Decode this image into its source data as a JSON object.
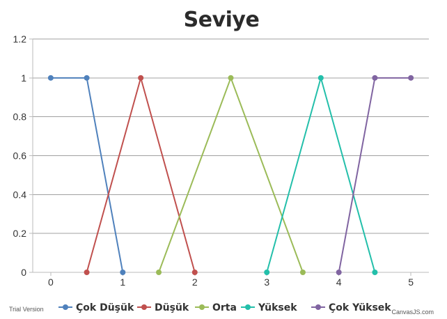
{
  "trial_label": "Trial Version",
  "credit_label": "CanvasJS.com",
  "chart_data": {
    "type": "line",
    "title": "Seviye",
    "xlabel": "",
    "ylabel": "",
    "xlim": [
      -0.25,
      5.25
    ],
    "ylim": [
      0,
      1.2
    ],
    "x_ticks": [
      0,
      1,
      2,
      3,
      4,
      5
    ],
    "y_ticks": [
      0,
      0.2,
      0.4,
      0.6,
      0.8,
      1,
      1.2
    ],
    "x_tick_labels": [
      "0",
      "1",
      "2",
      "3",
      "4",
      "5"
    ],
    "y_tick_labels": [
      "0",
      "0.2",
      "0.4",
      "0.6",
      "0.8",
      "1",
      "1.2"
    ],
    "grid": "horizontal",
    "legend_position": "bottom",
    "series": [
      {
        "name": "Çok Düşük",
        "color": "#4f81bc",
        "points": [
          [
            0,
            1
          ],
          [
            0.5,
            1
          ],
          [
            1,
            0
          ]
        ]
      },
      {
        "name": "Düşük",
        "color": "#c0504e",
        "points": [
          [
            0.5,
            0
          ],
          [
            1.25,
            1
          ],
          [
            2,
            0
          ]
        ]
      },
      {
        "name": "Orta",
        "color": "#9bbb58",
        "points": [
          [
            1.5,
            0
          ],
          [
            2.5,
            1
          ],
          [
            3.5,
            0
          ]
        ]
      },
      {
        "name": "Yüksek",
        "color": "#23bfaa",
        "points": [
          [
            3,
            0
          ],
          [
            3.75,
            1
          ],
          [
            4.5,
            0
          ]
        ]
      },
      {
        "name": "Çok Yüksek",
        "color": "#8064a1",
        "points": [
          [
            4,
            0
          ],
          [
            4.5,
            1
          ],
          [
            5,
            1
          ]
        ]
      }
    ]
  }
}
